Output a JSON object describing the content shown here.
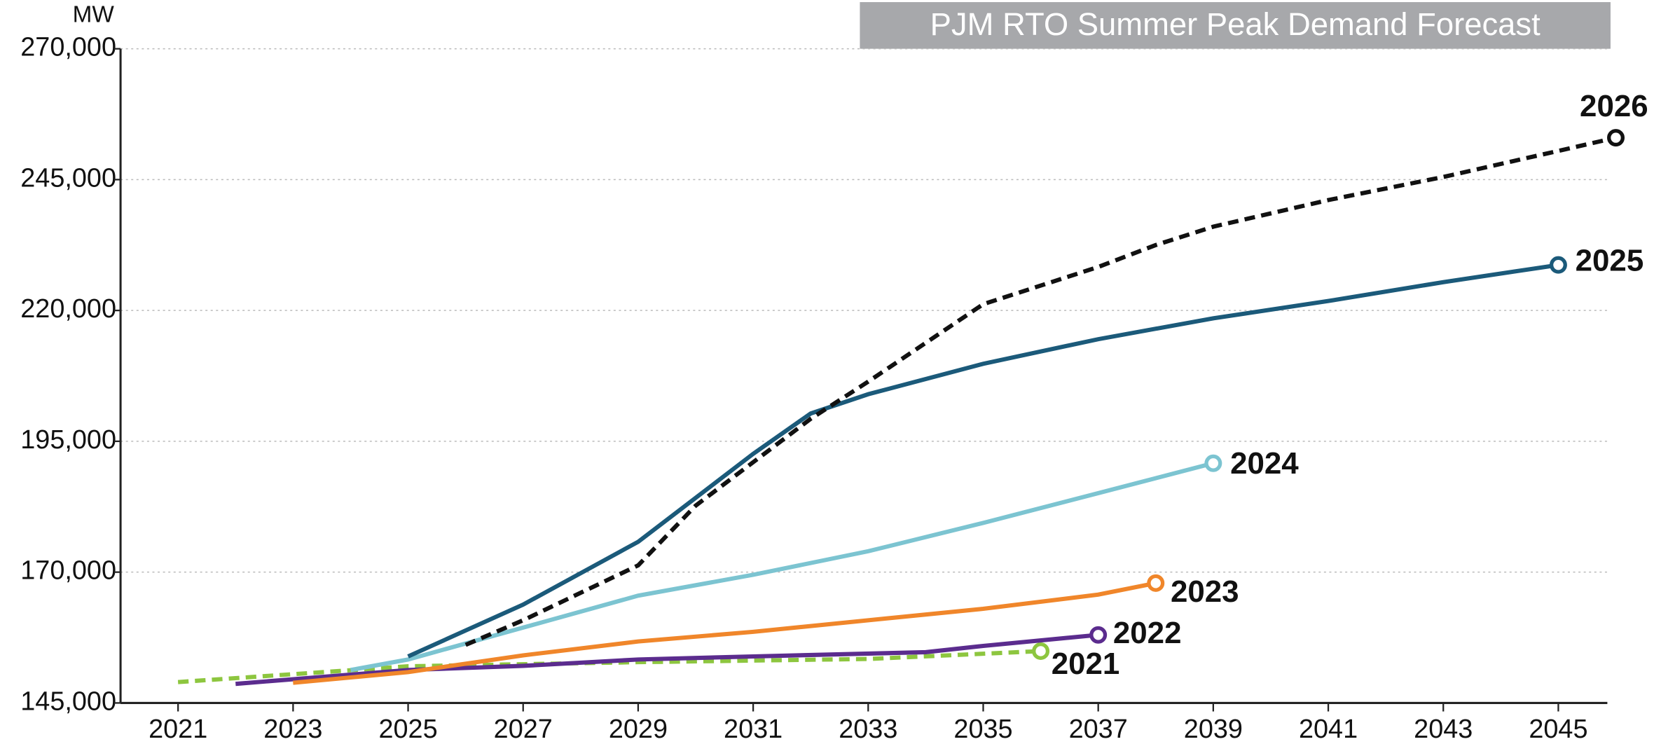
{
  "chart_data": {
    "type": "line",
    "title": "PJM RTO Summer Peak Demand Forecast",
    "y_label": "MW",
    "xlim": [
      2020,
      2046
    ],
    "xticks": [
      2021,
      2023,
      2025,
      2027,
      2029,
      2031,
      2033,
      2035,
      2037,
      2039,
      2041,
      2043,
      2045
    ],
    "ylim": [
      145000,
      270000
    ],
    "yticks": [
      {
        "value": 145000,
        "label": "145,000"
      },
      {
        "value": 170000,
        "label": "170,000"
      },
      {
        "value": 195000,
        "label": "195,000"
      },
      {
        "value": 220000,
        "label": "220,000"
      },
      {
        "value": 245000,
        "label": "245,000"
      },
      {
        "value": 270000,
        "label": "270,000"
      }
    ],
    "grid": true,
    "series": [
      {
        "name": "2021",
        "color": "#8dc63f",
        "dashed": true,
        "x": [
          2021,
          2025,
          2029,
          2033,
          2036
        ],
        "values": [
          149000,
          152000,
          152800,
          153400,
          154900
        ]
      },
      {
        "name": "2022",
        "color": "#5b2c8e",
        "dashed": false,
        "x": [
          2022,
          2025,
          2027,
          2029,
          2031,
          2034,
          2035,
          2037
        ],
        "values": [
          148650,
          151300,
          152100,
          153300,
          153900,
          154700,
          155900,
          158000
        ]
      },
      {
        "name": "2023",
        "color": "#f0862a",
        "dashed": false,
        "x": [
          2023,
          2025,
          2027,
          2029,
          2031,
          2033,
          2035,
          2037,
          2038
        ],
        "values": [
          148850,
          150900,
          154100,
          156750,
          158600,
          160800,
          163000,
          165700,
          167900
        ]
      },
      {
        "name": "2024",
        "color": "#7cc4d1",
        "dashed": false,
        "x": [
          2024,
          2025,
          2027,
          2029,
          2031,
          2033,
          2035,
          2037,
          2039
        ],
        "values": [
          151300,
          153300,
          159400,
          165500,
          169500,
          174000,
          179400,
          185100,
          190800
        ]
      },
      {
        "name": "2025",
        "color": "#1b5a7a",
        "dashed": false,
        "x": [
          2025,
          2027,
          2029,
          2031,
          2032,
          2033,
          2035,
          2037,
          2039,
          2041,
          2043,
          2045
        ],
        "values": [
          153900,
          163800,
          175800,
          192600,
          200300,
          204000,
          209800,
          214500,
          218500,
          221800,
          225400,
          228700
        ]
      },
      {
        "name": "2026",
        "color": "#111111",
        "dashed": true,
        "x": [
          2026,
          2027,
          2029,
          2030,
          2032,
          2033,
          2035,
          2037,
          2038,
          2039,
          2041,
          2043,
          2045,
          2046
        ],
        "values": [
          156100,
          160800,
          171300,
          182700,
          199300,
          206400,
          221200,
          228300,
          232500,
          236000,
          241100,
          245500,
          250500,
          253000
        ]
      }
    ]
  }
}
